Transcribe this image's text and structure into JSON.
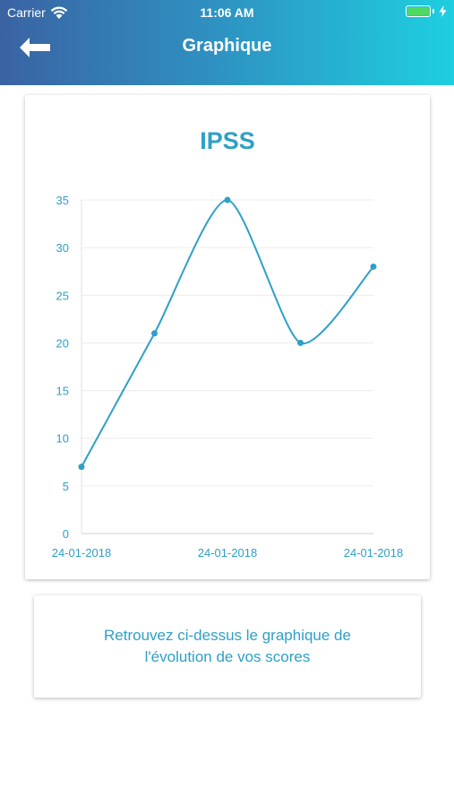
{
  "status_bar": {
    "carrier": "Carrier",
    "time": "11:06 AM",
    "battery_level": 1.0
  },
  "header": {
    "title": "Graphique",
    "back_icon": "arrow-left-icon"
  },
  "colors": {
    "accent": "#2ea0c7",
    "gradient_start": "#3a63a3",
    "gradient_end": "#1ecfe0",
    "battery": "#4cd964"
  },
  "chart_data": {
    "type": "line",
    "title": "IPSS",
    "x": [
      "24-01-2018",
      "24-01-2018",
      "24-01-2018",
      "24-01-2018",
      "24-01-2018"
    ],
    "values": [
      7,
      21,
      35,
      20,
      28
    ],
    "x_tick_labels": [
      "24-01-2018",
      "24-01-2018",
      "24-01-2018"
    ],
    "y_ticks": [
      0,
      5,
      10,
      15,
      20,
      25,
      30,
      35
    ],
    "ylim": [
      0,
      35
    ],
    "xlabel": "",
    "ylabel": "",
    "grid": true,
    "legend": "none"
  },
  "info": {
    "text": "Retrouvez ci-dessus le graphique de l'évolution de vos scores"
  }
}
